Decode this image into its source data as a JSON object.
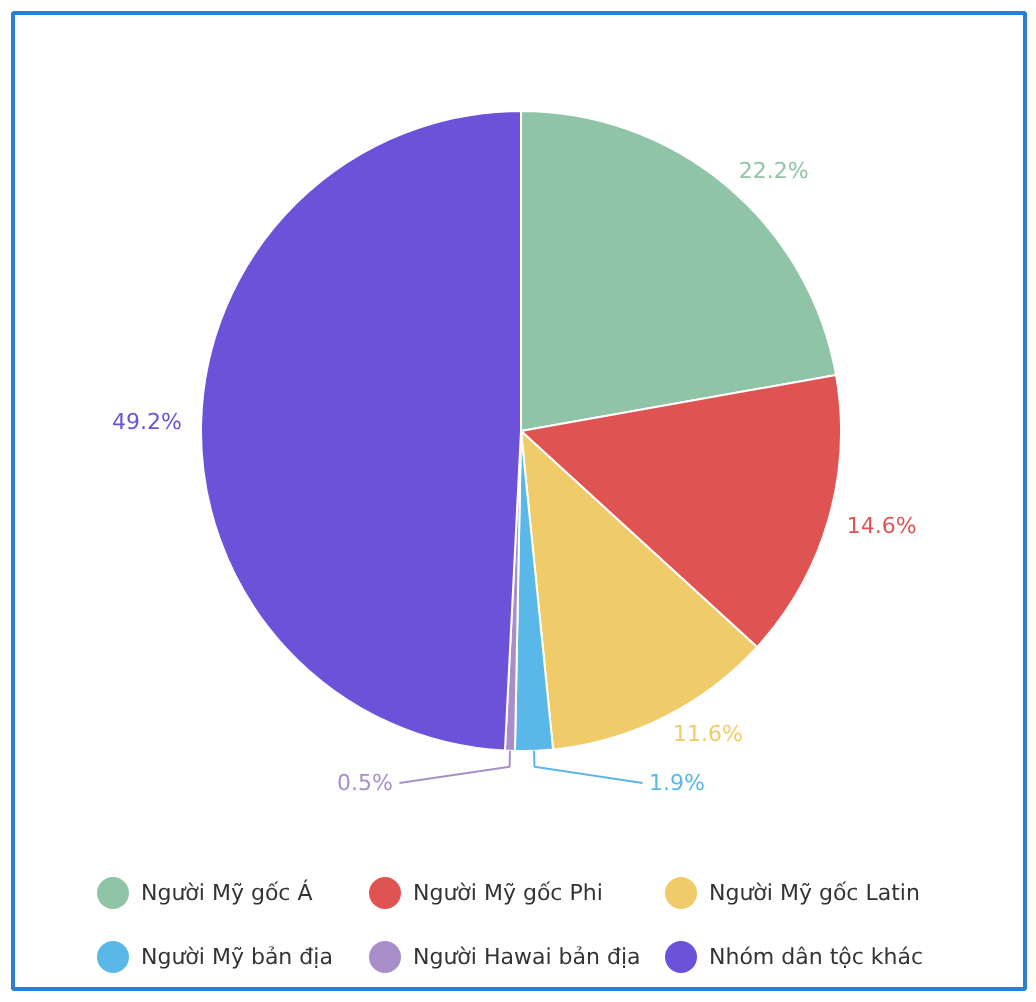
{
  "chart_data": {
    "type": "pie",
    "categories": [
      "Người Mỹ gốc Á",
      "Người Mỹ gốc Phi",
      "Người Mỹ gốc Latin",
      "Người Mỹ bản địa",
      "Người Hawai bản địa",
      "Nhóm dân tộc khác"
    ],
    "values": [
      22.2,
      14.6,
      11.6,
      1.9,
      0.5,
      49.2
    ],
    "value_labels": [
      "22.2%",
      "14.6%",
      "11.6%",
      "1.9%",
      "0.5%",
      "49.2%"
    ],
    "colors": [
      "#8fc4a6",
      "#e05353",
      "#f0cb69",
      "#5ab8e8",
      "#a98fc9",
      "#6b52d9"
    ],
    "legend": "bottom"
  }
}
